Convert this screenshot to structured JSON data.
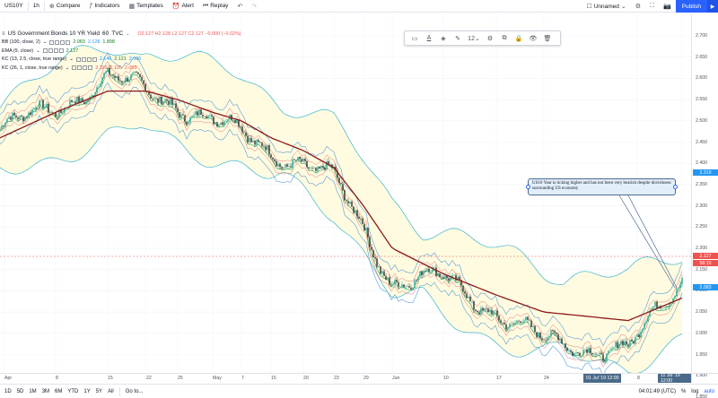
{
  "toolbar": {
    "symbol": "US10Y",
    "interval": "1h",
    "compare": "Compare",
    "indicators": "Indicators",
    "templates": "Templates",
    "alert": "Alert",
    "replay": "Replay",
    "layout_name": "Unnamed",
    "publish": "Publish"
  },
  "legend": {
    "title": "US Government Bonds 10 YR Yield",
    "interval": "60",
    "source": "TVC",
    "ohlc": "O2.127 H2.128 L2.127 C2.127 −0.000 (−0.02%)",
    "indicators": [
      {
        "label": "BB (100, close, 2)",
        "values": [
          "2.083",
          "2.128",
          "1.898"
        ],
        "colors": [
          "#0e7c23",
          "#2196f3",
          "#0e7c23"
        ]
      },
      {
        "label": "EMA (9, close)",
        "values": [
          "2.127"
        ],
        "colors": [
          "#0e7c23"
        ]
      },
      {
        "label": "KC (13, 2.5, close, true range)",
        "values": [
          "2.146",
          "2.121",
          "2.086"
        ],
        "colors": [
          "#2196f3",
          "#0e7c23",
          "#2196f3"
        ]
      },
      {
        "label": "KC (26, 1, close, true range)",
        "values": [
          "2.116",
          "2.105",
          "2.093"
        ],
        "colors": [
          "#ef5350",
          "#ef5350",
          "#ef5350"
        ]
      }
    ]
  },
  "callout": {
    "text": "US10 Year is ticking higher and has not been very bearish despite dovishness surrounding US economy"
  },
  "price_axis": {
    "ticks": [
      "2.700",
      "2.650",
      "2.600",
      "2.550",
      "2.500",
      "2.450",
      "2.400",
      "2.350",
      "2.300",
      "2.250",
      "2.200",
      "2.150",
      "2.100",
      "2.050",
      "2.000",
      "1.950",
      "1.900",
      "1.850"
    ],
    "current_price": "2.127",
    "countdown": "58:10",
    "upper_tag": "2.319",
    "lower_tag": "2.083"
  },
  "time_axis": {
    "ticks": [
      "Apr",
      "8",
      "15",
      "22",
      "25",
      "May",
      "7",
      "15",
      "20",
      "23",
      "29",
      "Jun",
      "10",
      "17",
      "24",
      "8",
      "15"
    ],
    "tag_left": "01 Jul '19  12:00",
    "tag_right": "11 Jul '19  12:00"
  },
  "bottom_bar": {
    "ranges": [
      "1D",
      "5D",
      "1M",
      "3M",
      "6M",
      "YTD",
      "1Y",
      "5Y",
      "All"
    ],
    "goto": "Go to...",
    "clock": "04:01:49 (UTC)",
    "percent": "%",
    "log": "log",
    "auto": "auto"
  },
  "chart_data": {
    "type": "line",
    "title": "US Government Bonds 10 YR Yield",
    "ylim": [
      1.84,
      2.72
    ],
    "x": [
      "Apr",
      "8",
      "15",
      "22",
      "25",
      "May",
      "7",
      "15",
      "20",
      "23",
      "29",
      "Jun",
      "10",
      "17",
      "24",
      "8",
      "15"
    ],
    "series": [
      {
        "name": "US10Y",
        "values": [
          2.48,
          2.53,
          2.6,
          2.57,
          2.54,
          2.5,
          2.47,
          2.43,
          2.4,
          2.36,
          2.25,
          2.12,
          2.13,
          2.05,
          1.98,
          1.96,
          2.127
        ]
      },
      {
        "name": "BB (100, close, 2)",
        "values": [
          2.46,
          2.52,
          2.57,
          2.57,
          2.55,
          2.52,
          2.5,
          2.46,
          2.43,
          2.39,
          2.3,
          2.2,
          2.14,
          2.09,
          2.05,
          2.03,
          2.083
        ]
      }
    ]
  }
}
